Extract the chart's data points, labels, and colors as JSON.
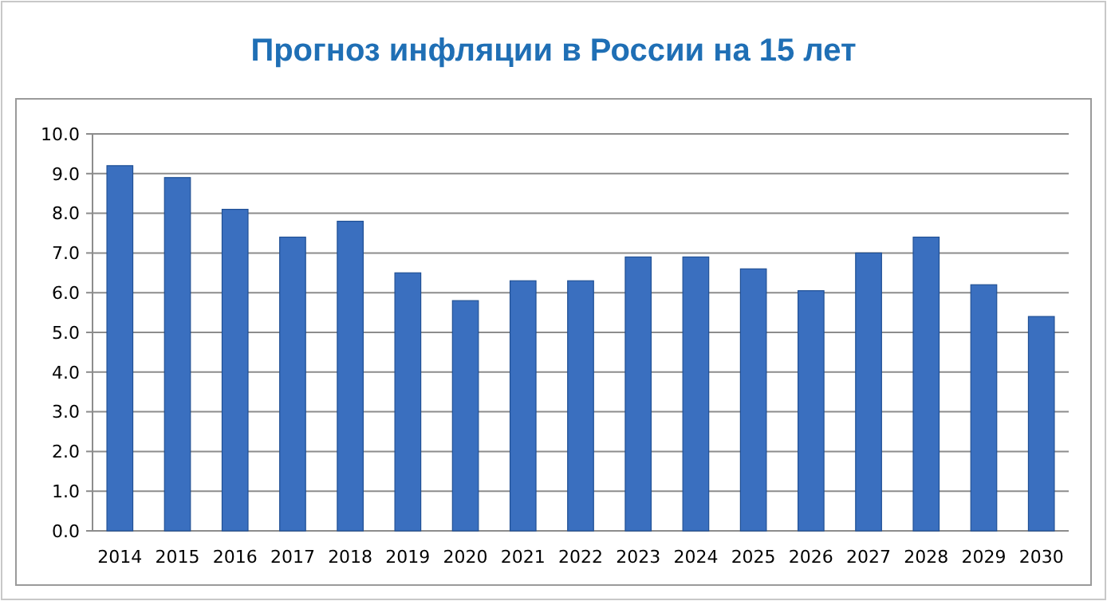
{
  "chart_data": {
    "type": "bar",
    "title": "Прогноз инфляции в России на 15 лет",
    "categories": [
      "2014",
      "2015",
      "2016",
      "2017",
      "2018",
      "2019",
      "2020",
      "2021",
      "2022",
      "2023",
      "2024",
      "2025",
      "2026",
      "2027",
      "2028",
      "2029",
      "2030"
    ],
    "values": [
      9.2,
      8.9,
      8.1,
      7.4,
      7.8,
      6.5,
      5.8,
      6.3,
      6.3,
      6.9,
      6.9,
      6.6,
      6.05,
      7.0,
      7.4,
      6.2,
      5.4
    ],
    "color": "#3a6fbf",
    "ylim": [
      0,
      10
    ],
    "yticks": [
      {
        "value": 0,
        "label": "0.0"
      },
      {
        "value": 1,
        "label": "1.0"
      },
      {
        "value": 2,
        "label": "2.0"
      },
      {
        "value": 3,
        "label": "3.0"
      },
      {
        "value": 4,
        "label": "4.0"
      },
      {
        "value": 5,
        "label": "5.0"
      },
      {
        "value": 6,
        "label": "6.0"
      },
      {
        "value": 7,
        "label": "7.0"
      },
      {
        "value": 8,
        "label": "8.0"
      },
      {
        "value": 9,
        "label": "9.0"
      },
      {
        "value": 10,
        "label": "10.0"
      }
    ],
    "grid": "y"
  }
}
